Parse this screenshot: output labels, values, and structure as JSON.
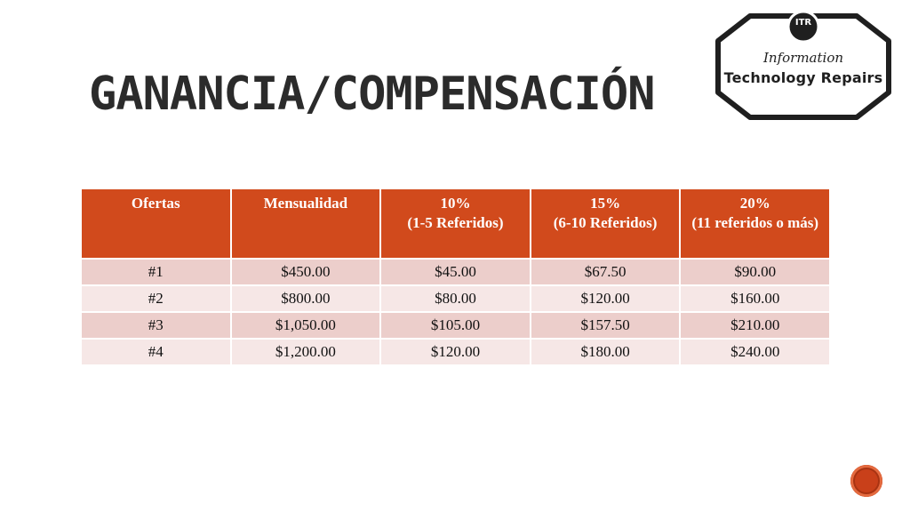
{
  "slide": {
    "title": "Ganancia/Compensación"
  },
  "logo": {
    "badge": "ITR",
    "subtitle": "Information",
    "main": "Technology Repairs"
  },
  "table": {
    "headers": [
      {
        "line1": "Ofertas",
        "line2": ""
      },
      {
        "line1": "Mensualidad",
        "line2": ""
      },
      {
        "line1": "10%",
        "line2": "(1-5 Referidos)"
      },
      {
        "line1": "15%",
        "line2": "(6-10 Referidos)"
      },
      {
        "line1": "20%",
        "line2": "(11 referidos  o más)"
      }
    ],
    "rows": [
      [
        "#1",
        "$450.00",
        "$45.00",
        "$67.50",
        "$90.00"
      ],
      [
        "#2",
        "$800.00",
        "$80.00",
        "$120.00",
        "$160.00"
      ],
      [
        "#3",
        "$1,050.00",
        "$105.00",
        "$157.50",
        "$210.00"
      ],
      [
        "#4",
        "$1,200.00",
        "$120.00",
        "$180.00",
        "$240.00"
      ]
    ]
  },
  "colors": {
    "header": "#d14a1c",
    "row_odd": "#eccecb",
    "row_even": "#f6e7e6",
    "accent": "#c9401a"
  },
  "icons": {
    "nav": "circle-button-icon"
  }
}
